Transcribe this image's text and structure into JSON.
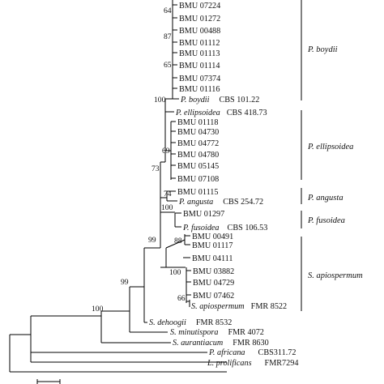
{
  "tree": {
    "taxa": [
      {
        "id": "t1",
        "name": "BMU 07224"
      },
      {
        "id": "t2",
        "name": "BMU 01272"
      },
      {
        "id": "t3",
        "name": "BMU 00488"
      },
      {
        "id": "t4",
        "name": "BMU 01112"
      },
      {
        "id": "t5",
        "name": "BMU 01113"
      },
      {
        "id": "t6",
        "name": "BMU 01114"
      },
      {
        "id": "t7",
        "name": "BMU 07374"
      },
      {
        "id": "t8",
        "name": "BMU 01116"
      },
      {
        "id": "t9",
        "species": "P. boydii",
        "strain": "CBS 101.22"
      },
      {
        "id": "t10",
        "species": "P. ellipsoidea",
        "strain": "CBS 418.73"
      },
      {
        "id": "t11",
        "name": "BMU 01118"
      },
      {
        "id": "t12",
        "name": "BMU 04730"
      },
      {
        "id": "t13",
        "name": "BMU 04772"
      },
      {
        "id": "t14",
        "name": "BMU 04780"
      },
      {
        "id": "t15",
        "name": "BMU 05145"
      },
      {
        "id": "t16",
        "name": "BMU 07108"
      },
      {
        "id": "t17",
        "name": "BMU 01115"
      },
      {
        "id": "t18",
        "species": "P. angusta",
        "strain": "CBS 254.72"
      },
      {
        "id": "t19",
        "name": "BMU 01297"
      },
      {
        "id": "t20",
        "species": "P. fusoidea",
        "strain": "CBS 106.53"
      },
      {
        "id": "t21",
        "name": "BMU 00491"
      },
      {
        "id": "t22",
        "name": "BMU 01117"
      },
      {
        "id": "t23",
        "name": "BMU 04111"
      },
      {
        "id": "t24",
        "name": "BMU 03882"
      },
      {
        "id": "t25",
        "name": "BMU 04729"
      },
      {
        "id": "t26",
        "name": "BMU 07462"
      },
      {
        "id": "t27",
        "species": "S. apiospermum",
        "strain": "FMR 8522"
      },
      {
        "id": "t28",
        "species": "S. dehoogii",
        "strain": "FMR 8532"
      },
      {
        "id": "t29",
        "species": "S. minutispora",
        "strain": "FMR 4072"
      },
      {
        "id": "t30",
        "species": "S. aurantiacum",
        "strain": "FMR 8630"
      },
      {
        "id": "t31",
        "species": "P. africana",
        "strain": "CBS311.72"
      },
      {
        "id": "t32",
        "species": "L. prolificans",
        "strain": "FMR7294"
      }
    ],
    "bootstrap": [
      {
        "id": "bs-64",
        "value": "64"
      },
      {
        "id": "bs-87",
        "value": "87"
      },
      {
        "id": "bs-65",
        "value": "65"
      },
      {
        "id": "bs-100-boydii",
        "value": "100"
      },
      {
        "id": "bs-69",
        "value": "69"
      },
      {
        "id": "bs-73",
        "value": "73"
      },
      {
        "id": "bs-74",
        "value": "74"
      },
      {
        "id": "bs-100-fusoidea",
        "value": "100"
      },
      {
        "id": "bs-99-apio",
        "value": "99"
      },
      {
        "id": "bs-88",
        "value": "88"
      },
      {
        "id": "bs-100-apio",
        "value": "100"
      },
      {
        "id": "bs-66",
        "value": "66"
      },
      {
        "id": "bs-99-root",
        "value": "99"
      },
      {
        "id": "bs-100-root",
        "value": "100"
      }
    ],
    "clades": [
      {
        "id": "clade-boydii",
        "label": "P. boydii"
      },
      {
        "id": "clade-ellipsoidea",
        "label": "P. ellipsoidea"
      },
      {
        "id": "clade-angusta",
        "label": "P. angusta"
      },
      {
        "id": "clade-fusoidea",
        "label": "P. fusoidea"
      },
      {
        "id": "clade-apiospermum",
        "label": "S. apiospermum"
      }
    ]
  }
}
